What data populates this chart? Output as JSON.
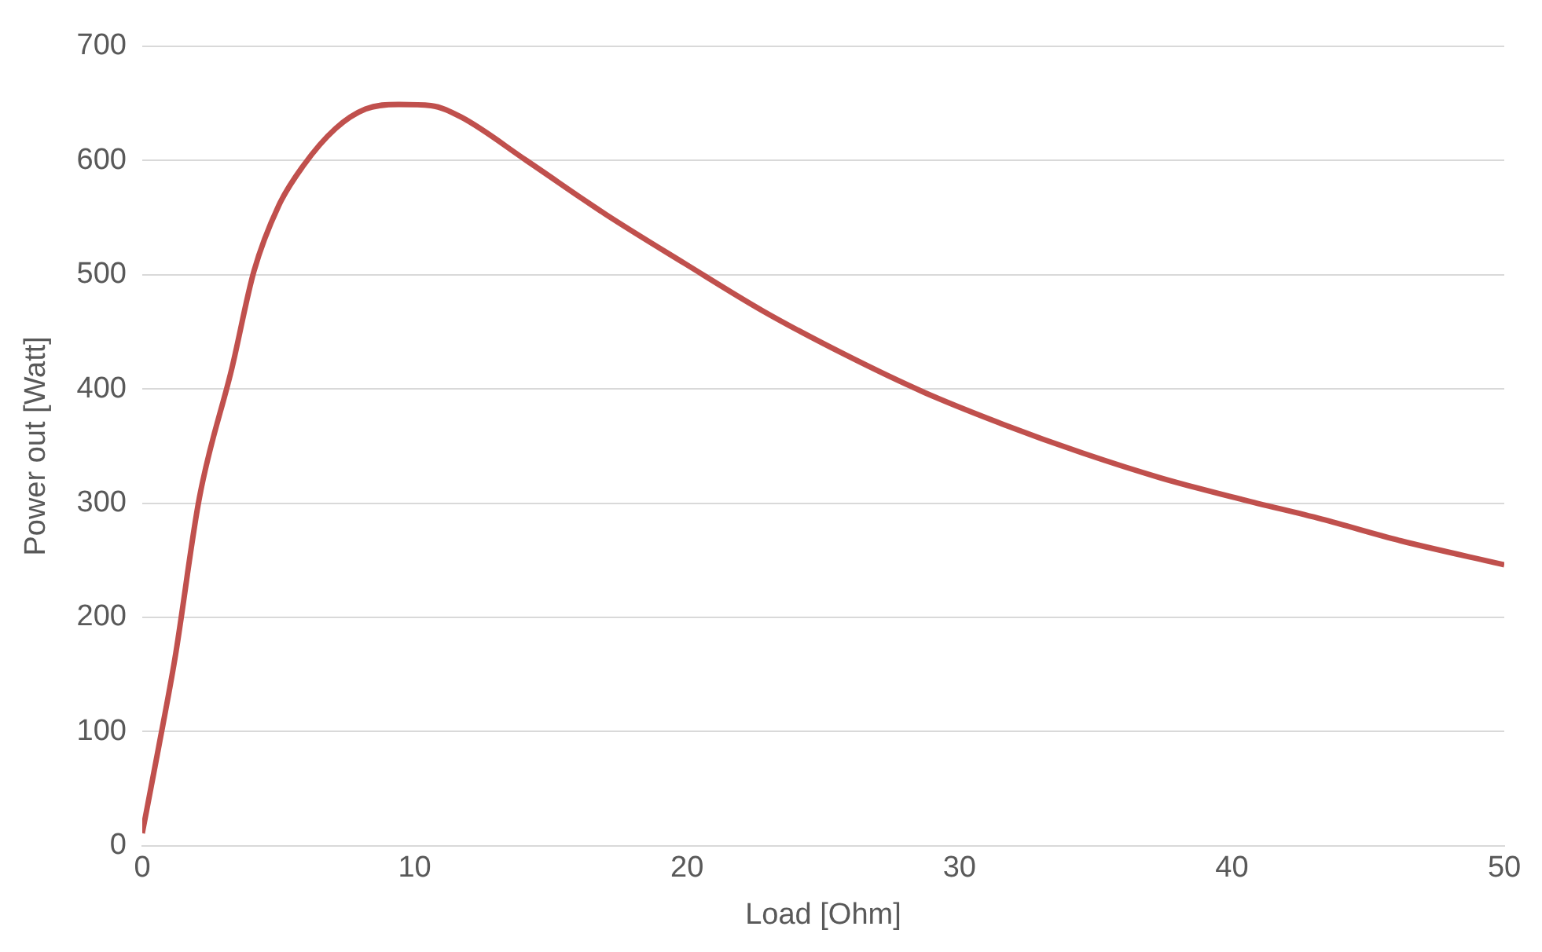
{
  "chart_data": {
    "type": "line",
    "xlabel": "Load [Ohm]",
    "ylabel": "Power out [Watt]",
    "x": [
      0,
      0.6,
      1.2,
      2.1,
      3.3,
      4.1,
      5,
      5.9,
      7.1,
      8.2,
      9.4,
      10.6,
      11.7,
      14.1,
      17,
      19.9,
      22.8,
      25.8,
      28.7,
      31.6,
      34.5,
      37.4,
      40.4,
      43.3,
      46.2,
      50
    ],
    "series": [
      {
        "color": "#c0504d",
        "values": [
          11,
          86,
          164,
          305,
          419,
          503,
          560,
          595,
          628,
          645,
          649,
          648,
          638,
          600,
          553,
          510,
          468,
          430,
          397,
          369,
          344,
          322,
          303,
          286,
          267,
          246
        ]
      }
    ],
    "xlim": [
      0,
      50
    ],
    "xticks": [
      0,
      10,
      20,
      30,
      40,
      50
    ],
    "ylim": [
      0,
      700
    ],
    "yticks": [
      0,
      100,
      200,
      300,
      400,
      500,
      600,
      700
    ],
    "grid": "y",
    "marker": "none",
    "line_style": "solid"
  }
}
